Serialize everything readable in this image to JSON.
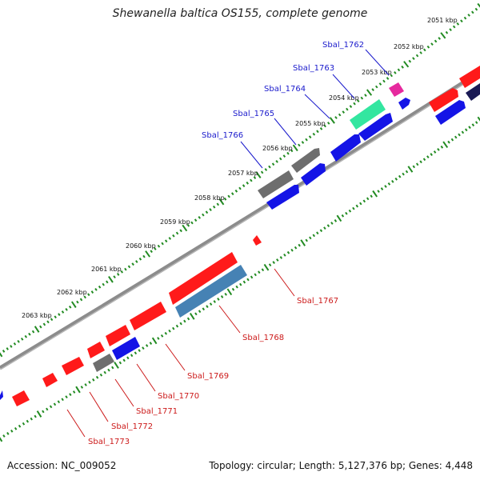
{
  "title": "Shewanella baltica OS155, complete genome",
  "footer": {
    "accession": "Accession: NC_009052",
    "summary": "Topology: circular; Length: 5,127,376 bp; Genes: 4,448"
  },
  "colors": {
    "backbone": "#8c8c8c",
    "tick_ring": "#228B22",
    "forward_label": "#1a1acc",
    "reverse_label": "#cc1a1a",
    "red": "#ff1a1a",
    "blue": "#1414e6",
    "gray": "#6e6e6e",
    "steelblue": "#4682b4",
    "green": "#33e6a0",
    "magenta": "#e6299e",
    "navy": "#1a1a55"
  },
  "ticks": [
    "2051 kbp",
    "2052 kbp",
    "2053 kbp",
    "2054 kbp",
    "2055 kbp",
    "2056 kbp",
    "2057 kbp",
    "2058 kbp",
    "2059 kbp",
    "2060 kbp",
    "2061 kbp",
    "2062 kbp",
    "2063 kbp"
  ],
  "forward_labels": [
    "Sbal_1762",
    "Sbal_1763",
    "Sbal_1764",
    "Sbal_1765",
    "Sbal_1766"
  ],
  "reverse_labels": [
    "Sbal_1767",
    "Sbal_1768",
    "Sbal_1769",
    "Sbal_1770",
    "Sbal_1771",
    "Sbal_1772",
    "Sbal_1773"
  ]
}
